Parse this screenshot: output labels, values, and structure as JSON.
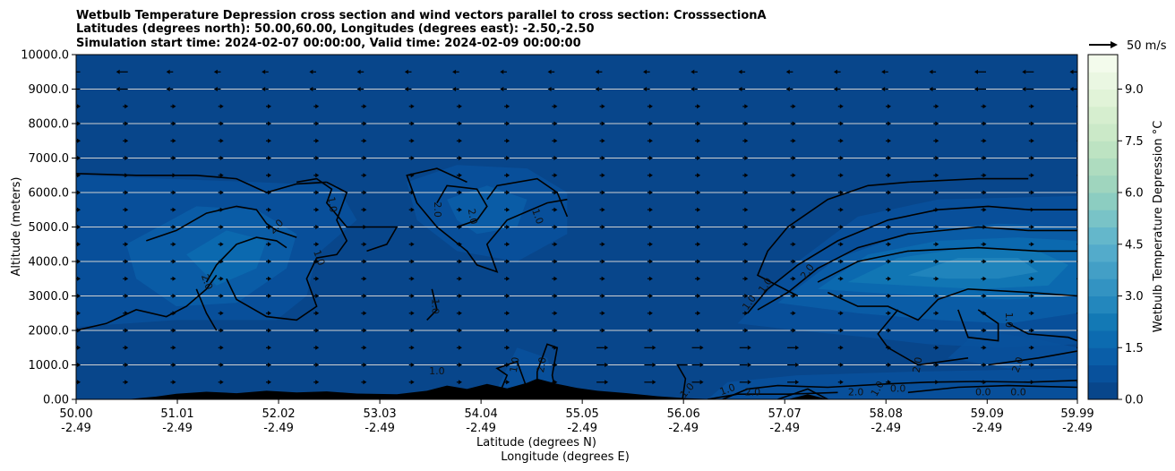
{
  "chart_data": {
    "type": "heatmap",
    "title_lines": [
      "Wetbulb Temperature Depression cross section and wind vectors parallel to cross section: CrosssectionA",
      "Latitudes (degrees north): 50.00,60.00, Longitudes (degrees east): -2.50,-2.50",
      "Simulation start time: 2024-02-07 00:00:00, Valid time: 2024-02-09 00:00:00"
    ],
    "ylabel": "Altitude (meters)",
    "xlabel": "Latitude (degrees N)",
    "xlabel2": "Longitude (degrees E)",
    "ylim": [
      0,
      10000
    ],
    "xlim": [
      50.0,
      59.99
    ],
    "y_ticks": [
      "0.00",
      "1000.0",
      "2000.0",
      "3000.0",
      "4000.0",
      "5000.0",
      "6000.0",
      "7000.0",
      "8000.0",
      "9000.0",
      "10000.0"
    ],
    "y_tick_values": [
      0,
      1000,
      2000,
      3000,
      4000,
      5000,
      6000,
      7000,
      8000,
      9000,
      10000
    ],
    "x_ticks": [
      {
        "lat": "50.00",
        "lon": "-2.49",
        "value": 50.0
      },
      {
        "lat": "51.01",
        "lon": "-2.49",
        "value": 51.01
      },
      {
        "lat": "52.02",
        "lon": "-2.49",
        "value": 52.02
      },
      {
        "lat": "53.03",
        "lon": "-2.49",
        "value": 53.03
      },
      {
        "lat": "54.04",
        "lon": "-2.49",
        "value": 54.04
      },
      {
        "lat": "55.05",
        "lon": "-2.49",
        "value": 55.05
      },
      {
        "lat": "56.06",
        "lon": "-2.49",
        "value": 56.06
      },
      {
        "lat": "57.07",
        "lon": "-2.49",
        "value": 57.07
      },
      {
        "lat": "58.08",
        "lon": "-2.49",
        "value": 58.08
      },
      {
        "lat": "59.09",
        "lon": "-2.49",
        "value": 59.09
      },
      {
        "lat": "59.99",
        "lon": "-2.49",
        "value": 59.99
      }
    ],
    "colorbar": {
      "label": "Wetbulb Temperature Depression °C",
      "min": 0.0,
      "max": 10.0,
      "ticks": [
        "0.0",
        "1.5",
        "3.0",
        "4.5",
        "6.0",
        "7.5",
        "9.0"
      ],
      "tick_values": [
        0.0,
        1.5,
        3.0,
        4.5,
        6.0,
        7.5,
        9.0
      ],
      "levels": 20,
      "colormap": "GnBu",
      "colors": [
        "#08468b",
        "#08519c",
        "#0a5ea8",
        "#0c6bb0",
        "#1379b5",
        "#2387bd",
        "#3393c2",
        "#439fc6",
        "#53abcb",
        "#64b7cb",
        "#79c3c7",
        "#8ccdc1",
        "#9fd5be",
        "#aedcbf",
        "#bde3c2",
        "#cbe9c8",
        "#d6eecf",
        "#e1f3d8",
        "#eaf7e2",
        "#f3fbec"
      ]
    },
    "wind_reference": {
      "label": "50 m/s",
      "speed": 50
    },
    "gridlines": "horizontal",
    "contour_color": "#000000",
    "contour_labels": [
      {
        "text": "2.0",
        "lat": 52.0,
        "alt": 5000,
        "rot": -45
      },
      {
        "text": "1.0",
        "lat": 52.55,
        "alt": 5650,
        "rot": 80
      },
      {
        "text": "1.0",
        "lat": 52.42,
        "alt": 4100,
        "rot": 70
      },
      {
        "text": "2.0",
        "lat": 51.3,
        "alt": 3400,
        "rot": 70
      },
      {
        "text": "2.0",
        "lat": 53.6,
        "alt": 5500,
        "rot": 90
      },
      {
        "text": "2.0",
        "lat": 53.95,
        "alt": 5300,
        "rot": 80
      },
      {
        "text": "1.0",
        "lat": 54.6,
        "alt": 5300,
        "rot": 70
      },
      {
        "text": "1.0",
        "lat": 53.58,
        "alt": 2700,
        "rot": 90
      },
      {
        "text": "1.0",
        "lat": 53.6,
        "alt": 800,
        "rot": 0
      },
      {
        "text": "1.0",
        "lat": 54.38,
        "alt": 1000,
        "rot": -80
      },
      {
        "text": "2.0",
        "lat": 54.65,
        "alt": 1000,
        "rot": -80
      },
      {
        "text": "1.0",
        "lat": 56.5,
        "alt": 270,
        "rot": -20
      },
      {
        "text": "1.0",
        "lat": 56.1,
        "alt": 250,
        "rot": -50
      },
      {
        "text": "2.0",
        "lat": 56.75,
        "alt": 200,
        "rot": 0
      },
      {
        "text": "1.0",
        "lat": 56.72,
        "alt": 2800,
        "rot": -55
      },
      {
        "text": "1.0",
        "lat": 56.88,
        "alt": 3300,
        "rot": -55
      },
      {
        "text": "2.0",
        "lat": 57.3,
        "alt": 3700,
        "rot": -55
      },
      {
        "text": "2.0",
        "lat": 57.78,
        "alt": 200,
        "rot": 0
      },
      {
        "text": "1.0",
        "lat": 58.0,
        "alt": 300,
        "rot": -60
      },
      {
        "text": "0.0",
        "lat": 58.2,
        "alt": 300,
        "rot": 0
      },
      {
        "text": "2.0",
        "lat": 58.4,
        "alt": 1000,
        "rot": -80
      },
      {
        "text": "1.0",
        "lat": 59.3,
        "alt": 2300,
        "rot": 90
      },
      {
        "text": "2.0",
        "lat": 59.4,
        "alt": 1000,
        "rot": -70
      },
      {
        "text": "0.0",
        "lat": 59.05,
        "alt": 200,
        "rot": 0
      },
      {
        "text": "0.0",
        "lat": 59.4,
        "alt": 200,
        "rot": 0
      }
    ]
  }
}
